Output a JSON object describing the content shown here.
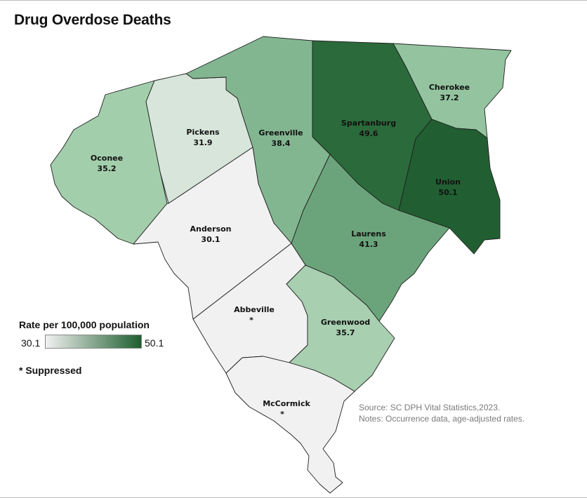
{
  "title": "Drug Overdose Deaths",
  "legend": {
    "title": "Rate per 100,000 population",
    "min_label": "30.1",
    "max_label": "50.1",
    "min_value": 30.1,
    "max_value": 50.1,
    "color_low": "#f1f1f1",
    "color_high": "#1e5e2e",
    "suppressed_label": "* Suppressed"
  },
  "source": {
    "line1": "Source: SC DPH Vital Statistics,2023.",
    "line2": "Notes: Occurrence data, age-adjusted rates."
  },
  "counties": [
    {
      "name": "Oconee",
      "value_label": "35.2",
      "value": 35.2,
      "color": "#a3ceac"
    },
    {
      "name": "Pickens",
      "value_label": "31.9",
      "value": 31.9,
      "color": "#d7e5da"
    },
    {
      "name": "Greenville",
      "value_label": "38.4",
      "value": 38.4,
      "color": "#82b691"
    },
    {
      "name": "Spartanburg",
      "value_label": "49.6",
      "value": 49.6,
      "color": "#2b6a3a"
    },
    {
      "name": "Cherokee",
      "value_label": "37.2",
      "value": 37.2,
      "color": "#93c49f"
    },
    {
      "name": "Union",
      "value_label": "50.1",
      "value": 50.1,
      "color": "#215f32"
    },
    {
      "name": "Anderson",
      "value_label": "30.1",
      "value": 30.1,
      "color": "#f1f1f1"
    },
    {
      "name": "Laurens",
      "value_label": "41.3",
      "value": 41.3,
      "color": "#6ba47b"
    },
    {
      "name": "Abbeville",
      "value_label": "*",
      "value": null,
      "color": "#f1f1f1"
    },
    {
      "name": "Greenwood",
      "value_label": "35.7",
      "value": 35.7,
      "color": "#a7cfb0"
    },
    {
      "name": "McCormick",
      "value_label": "*",
      "value": null,
      "color": "#f1f1f1"
    }
  ]
}
